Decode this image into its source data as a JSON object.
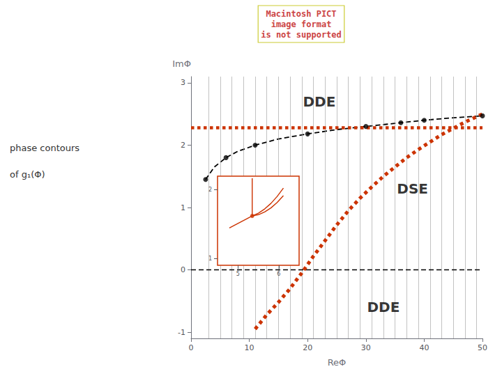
{
  "chart_data": {
    "type": "line",
    "x_label": "ReΦ",
    "y_label": "ImΦ",
    "xlim": [
      0,
      50
    ],
    "ylim": [
      -1.1,
      3.1
    ],
    "xticks": [
      0,
      10,
      20,
      30,
      40,
      50
    ],
    "yticks": [
      -1,
      0,
      1,
      2,
      3
    ],
    "grid": false,
    "vertical_lines": {
      "color": "#999999",
      "x": [
        3,
        5,
        7,
        9,
        11,
        13,
        15,
        17,
        19,
        21,
        23,
        25,
        27,
        29,
        31,
        33,
        35,
        37,
        39,
        41,
        43,
        45,
        47,
        49
      ]
    },
    "horizontal_lines": [
      {
        "y": 0.0,
        "color": "#000000",
        "line_style": "dashed"
      },
      {
        "y": 2.28,
        "color": "#cc3300",
        "line_style": "dotted"
      }
    ],
    "series": [
      {
        "type": "line",
        "line_style": "dashed",
        "color": "#000000",
        "x": [
          2.5,
          4,
          6,
          8,
          11,
          15,
          20,
          25,
          30,
          35,
          40,
          45,
          50
        ],
        "values": [
          1.45,
          1.65,
          1.8,
          1.9,
          2.0,
          2.1,
          2.18,
          2.25,
          2.3,
          2.35,
          2.4,
          2.44,
          2.47
        ]
      },
      {
        "type": "scatter",
        "marker": "circle",
        "color": "#000000",
        "x": [
          2.5,
          6,
          11,
          20,
          30,
          36,
          40,
          50
        ],
        "values": [
          1.45,
          1.8,
          2.0,
          2.18,
          2.3,
          2.36,
          2.4,
          2.47
        ]
      },
      {
        "type": "line",
        "line_style": "dotted",
        "color": "#cc3300",
        "x": [
          11,
          13,
          15,
          17,
          19,
          21,
          23,
          25,
          27,
          29,
          31,
          33,
          35,
          37,
          39,
          41,
          43,
          45,
          47,
          50
        ],
        "values": [
          -0.95,
          -0.72,
          -0.52,
          -0.3,
          -0.05,
          0.22,
          0.47,
          0.72,
          0.95,
          1.15,
          1.33,
          1.5,
          1.65,
          1.8,
          1.93,
          2.05,
          2.17,
          2.27,
          2.37,
          2.5
        ]
      }
    ],
    "annotations": [
      {
        "text": "DDE",
        "x": 22,
        "y": 2.7
      },
      {
        "text": "DSE",
        "x": 38,
        "y": 1.3
      },
      {
        "text": "DDE",
        "x": 33,
        "y": -0.6
      }
    ],
    "side_text": [
      "phase contours",
      "of g₁(Φ)"
    ],
    "notice": {
      "text": "Macintosh PICT\nimage format\nis not supported",
      "color": "#cc4444"
    },
    "inset": {
      "type": "line",
      "color": "#cc3300",
      "xlim": [
        4.5,
        6.5
      ],
      "ylim": [
        0.9,
        2.2
      ],
      "xticks": [
        5,
        6
      ],
      "yticks": [
        1,
        2
      ],
      "series": [
        {
          "type": "line",
          "x": [
            5.35,
            5.35
          ],
          "values": [
            1.62,
            2.17
          ]
        },
        {
          "type": "line",
          "x": [
            5.35,
            5.503,
            5.656,
            5.809,
            5.962,
            6.115
          ],
          "values": [
            1.62,
            1.660715,
            1.72166,
            1.802835,
            1.90424,
            2.025875
          ]
        },
        {
          "type": "line",
          "x": [
            5.35,
            5.503,
            5.656,
            5.809,
            5.962,
            6.115
          ],
          "values": [
            1.62,
            1.638615,
            1.67746,
            1.736535,
            1.81584,
            1.915375
          ]
        },
        {
          "type": "line",
          "x": [
            5.35,
            4.79
          ],
          "values": [
            1.62,
            1.445
          ]
        },
        {
          "type": "scatter",
          "marker": "circle",
          "x": [
            5.35
          ],
          "values": [
            1.62
          ]
        }
      ]
    }
  }
}
